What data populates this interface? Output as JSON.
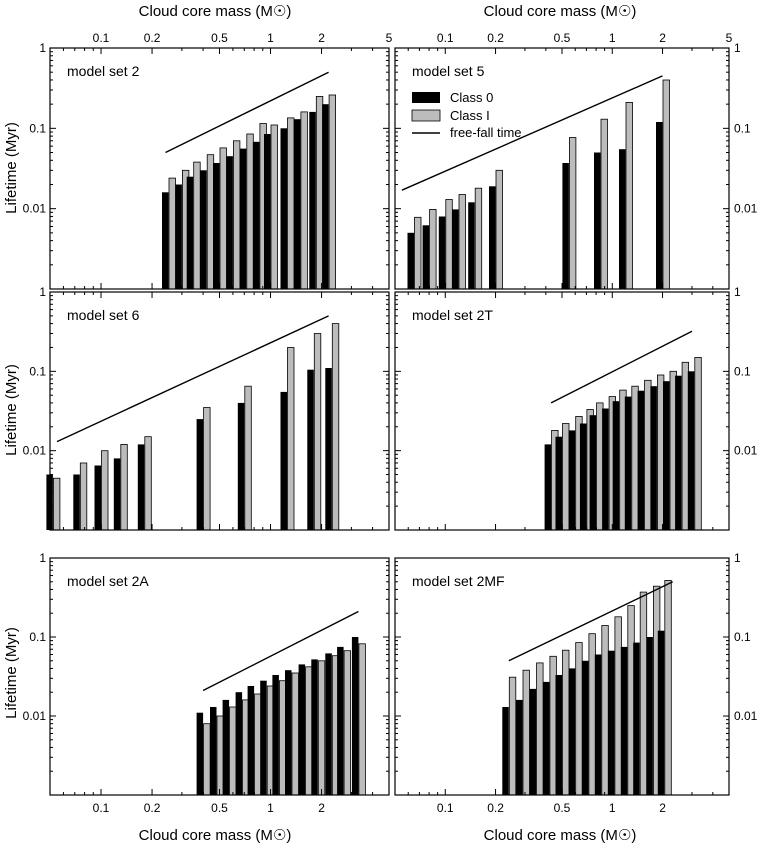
{
  "figure": {
    "x_axis_title": "Cloud core mass (M",
    "x_axis_sun": "☉",
    "x_axis_close": ")",
    "y_axis_title": "Lifetime (Myr)",
    "legend": {
      "class0": "Class 0",
      "class1": "Class I",
      "freefall": "free-fall time"
    },
    "colors": {
      "class0": "#000000",
      "class1": "#bcbcbc",
      "freefall": "#000000"
    }
  },
  "chart_data": [
    {
      "type": "bar",
      "title": "model set 2",
      "xscale": "log",
      "yscale": "log",
      "xlim": [
        0.05,
        5
      ],
      "ylim": [
        0.001,
        1
      ],
      "x_ticks": [
        "0.1",
        "0.2",
        "0.5",
        "1",
        "2",
        "5"
      ],
      "y_ticks": [
        "1",
        "0.1",
        "0.01"
      ],
      "x": [
        0.25,
        0.3,
        0.35,
        0.42,
        0.5,
        0.6,
        0.72,
        0.86,
        1.0,
        1.25,
        1.5,
        1.85,
        2.2
      ],
      "series": [
        {
          "name": "Class 0",
          "values": [
            0.016,
            0.02,
            0.025,
            0.03,
            0.037,
            0.045,
            0.056,
            0.068,
            0.085,
            0.1,
            0.13,
            0.16,
            0.2
          ]
        },
        {
          "name": "Class I",
          "values": [
            0.024,
            0.03,
            0.038,
            0.047,
            0.057,
            0.07,
            0.085,
            0.115,
            0.11,
            0.135,
            0.16,
            0.25,
            0.26
          ]
        }
      ],
      "freefall": {
        "x": [
          0.24,
          2.2
        ],
        "y": [
          0.05,
          0.5
        ]
      }
    },
    {
      "type": "bar",
      "title": "model set 5",
      "xscale": "log",
      "yscale": "log",
      "xlim": [
        0.05,
        5
      ],
      "ylim": [
        0.001,
        1
      ],
      "x_ticks": [
        "0.1",
        "0.2",
        "0.5",
        "1",
        "2",
        "5"
      ],
      "y_ticks": [
        "1",
        "0.1",
        "0.01"
      ],
      "x": [
        0.065,
        0.08,
        0.1,
        0.12,
        0.15,
        0.2,
        0.55,
        0.85,
        1.2,
        2.0
      ],
      "series": [
        {
          "name": "Class 0",
          "values": [
            0.005,
            0.0062,
            0.008,
            0.0098,
            0.012,
            0.019,
            0.037,
            0.05,
            0.055,
            0.12
          ]
        },
        {
          "name": "Class I",
          "values": [
            0.0078,
            0.0098,
            0.013,
            0.015,
            0.018,
            0.03,
            0.077,
            0.13,
            0.21,
            0.4
          ]
        }
      ],
      "freefall": {
        "x": [
          0.055,
          2.0
        ],
        "y": [
          0.017,
          0.45
        ]
      },
      "legend": "top-left"
    },
    {
      "type": "bar",
      "title": "model set 6",
      "xscale": "log",
      "yscale": "log",
      "xlim": [
        0.05,
        5
      ],
      "ylim": [
        0.001,
        1
      ],
      "x_ticks": [],
      "y_ticks": [
        "1",
        "0.1",
        "0.01"
      ],
      "x": [
        0.052,
        0.075,
        0.1,
        0.13,
        0.18,
        0.4,
        0.7,
        1.25,
        1.8,
        2.3
      ],
      "series": [
        {
          "name": "Class 0",
          "values": [
            0.005,
            0.005,
            0.0065,
            0.008,
            0.012,
            0.025,
            0.04,
            0.055,
            0.105,
            0.11
          ]
        },
        {
          "name": "Class I",
          "values": [
            0.0045,
            0.007,
            0.01,
            0.012,
            0.015,
            0.035,
            0.065,
            0.2,
            0.3,
            0.4
          ]
        }
      ],
      "freefall": {
        "x": [
          0.055,
          2.2
        ],
        "y": [
          0.013,
          0.5
        ]
      }
    },
    {
      "type": "bar",
      "title": "model set 2T",
      "xscale": "log",
      "yscale": "log",
      "xlim": [
        0.05,
        5
      ],
      "ylim": [
        0.001,
        1
      ],
      "x_ticks": [],
      "y_ticks": [
        "1",
        "0.1",
        "0.01"
      ],
      "x": [
        0.43,
        0.5,
        0.6,
        0.7,
        0.8,
        0.95,
        1.1,
        1.3,
        1.55,
        1.85,
        2.2,
        2.6,
        3.1
      ],
      "series": [
        {
          "name": "Class 0",
          "values": [
            0.012,
            0.015,
            0.018,
            0.022,
            0.028,
            0.034,
            0.042,
            0.048,
            0.057,
            0.065,
            0.075,
            0.088,
            0.1
          ]
        },
        {
          "name": "Class I",
          "values": [
            0.018,
            0.022,
            0.027,
            0.033,
            0.04,
            0.048,
            0.058,
            0.065,
            0.077,
            0.09,
            0.1,
            0.13,
            0.15
          ]
        }
      ],
      "freefall": {
        "x": [
          0.43,
          3.0
        ],
        "y": [
          0.04,
          0.32
        ]
      }
    },
    {
      "type": "bar",
      "title": "model set 2A",
      "xscale": "log",
      "yscale": "log",
      "xlim": [
        0.05,
        5
      ],
      "ylim": [
        0.001,
        1
      ],
      "x_ticks": [
        "0.1",
        "0.2",
        "0.5",
        "1",
        "2"
      ],
      "y_ticks": [
        "1",
        "0.1",
        "0.01"
      ],
      "x": [
        0.4,
        0.48,
        0.57,
        0.68,
        0.8,
        0.95,
        1.12,
        1.33,
        1.6,
        1.9,
        2.3,
        2.7,
        3.3
      ],
      "series": [
        {
          "name": "Class 0",
          "values": [
            0.011,
            0.013,
            0.016,
            0.02,
            0.024,
            0.028,
            0.033,
            0.038,
            0.045,
            0.052,
            0.062,
            0.075,
            0.1
          ]
        },
        {
          "name": "Class I",
          "values": [
            0.008,
            0.01,
            0.013,
            0.016,
            0.019,
            0.024,
            0.028,
            0.035,
            0.042,
            0.05,
            0.058,
            0.067,
            0.082
          ]
        }
      ],
      "freefall": {
        "x": [
          0.4,
          3.3
        ],
        "y": [
          0.021,
          0.21
        ]
      }
    },
    {
      "type": "bar",
      "title": "model set 2MF",
      "xscale": "log",
      "yscale": "log",
      "xlim": [
        0.05,
        5
      ],
      "ylim": [
        0.001,
        1
      ],
      "x_ticks": [
        "0.1",
        "0.2",
        "0.5",
        "1",
        "2"
      ],
      "y_ticks": [
        "1",
        "0.1",
        "0.01"
      ],
      "x": [
        0.24,
        0.29,
        0.35,
        0.42,
        0.5,
        0.6,
        0.72,
        0.86,
        1.03,
        1.23,
        1.46,
        1.75,
        2.05
      ],
      "series": [
        {
          "name": "Class 0",
          "values": [
            0.013,
            0.016,
            0.022,
            0.027,
            0.033,
            0.04,
            0.05,
            0.06,
            0.067,
            0.075,
            0.085,
            0.1,
            0.12
          ]
        },
        {
          "name": "Class I",
          "values": [
            0.031,
            0.038,
            0.047,
            0.057,
            0.068,
            0.085,
            0.11,
            0.14,
            0.18,
            0.25,
            0.37,
            0.44,
            0.52
          ]
        }
      ],
      "freefall": {
        "x": [
          0.24,
          2.3
        ],
        "y": [
          0.05,
          0.5
        ]
      }
    }
  ]
}
